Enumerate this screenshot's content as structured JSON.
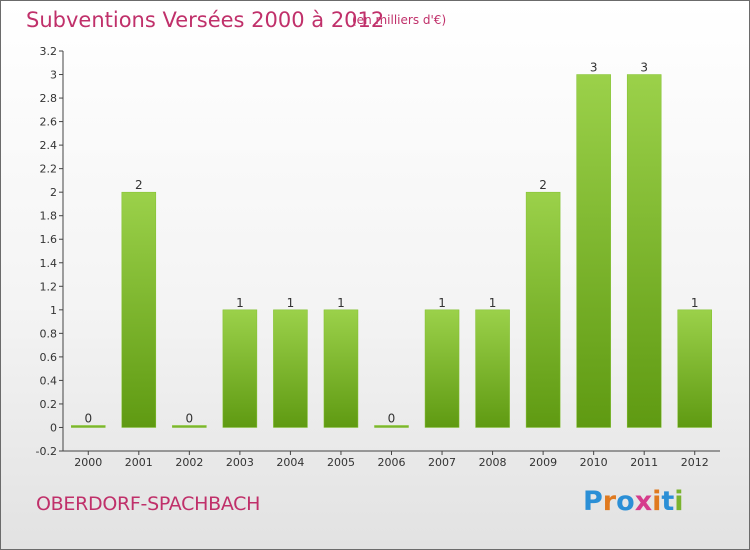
{
  "title": "Subventions Versées 2000 à 2012",
  "subtitle": "(en milliers d'€)",
  "place": "OBERDORF-SPACHBACH",
  "logo": {
    "text": "Proxiti",
    "colors": [
      "#2b8fd6",
      "#e07a1f",
      "#2b8fd6",
      "#d63c8c",
      "#e07a1f",
      "#2b8fd6",
      "#7ab32e"
    ]
  },
  "colors": {
    "bar_top": "#9bd14a",
    "bar_bottom": "#5f9a12",
    "accent": "#c0306a"
  },
  "chart_data": {
    "type": "bar",
    "categories": [
      "2000",
      "2001",
      "2002",
      "2003",
      "2004",
      "2005",
      "2006",
      "2007",
      "2008",
      "2009",
      "2010",
      "2011",
      "2012"
    ],
    "values": [
      0,
      2,
      0,
      1,
      1,
      1,
      0,
      1,
      1,
      2,
      3,
      3,
      1
    ],
    "data_labels": [
      "0",
      "2",
      "0",
      "1",
      "1",
      "1",
      "0",
      "1",
      "1",
      "2",
      "3",
      "3",
      "1"
    ],
    "ylim": [
      -0.2,
      3.2
    ],
    "yticks": [
      "-0.2",
      "0",
      "0.2",
      "0.4",
      "0.6",
      "0.8",
      "1",
      "1.2",
      "1.4",
      "1.6",
      "1.8",
      "2",
      "2.2",
      "2.4",
      "2.6",
      "2.8",
      "3",
      "3.2"
    ],
    "ytick_values": [
      -0.2,
      0,
      0.2,
      0.4,
      0.6,
      0.8,
      1,
      1.2,
      1.4,
      1.6,
      1.8,
      2,
      2.2,
      2.4,
      2.6,
      2.8,
      3,
      3.2
    ],
    "grid": false,
    "title": "Subventions Versées 2000 à 2012",
    "xlabel": "",
    "ylabel": ""
  }
}
